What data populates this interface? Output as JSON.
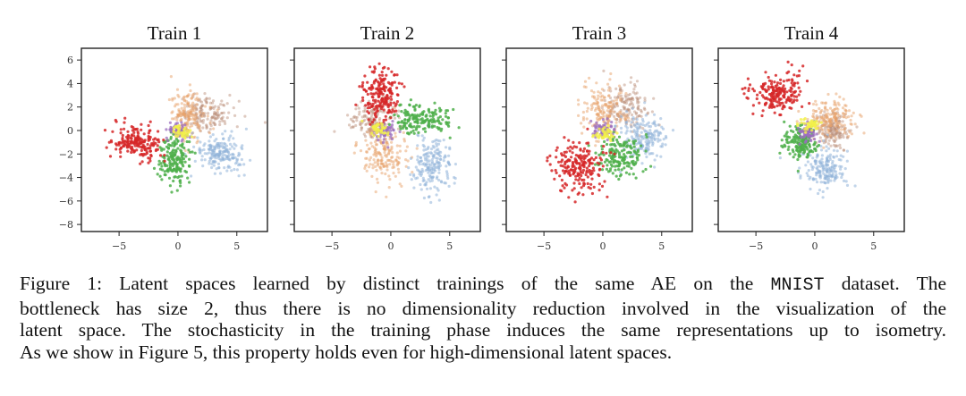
{
  "chart_data": {
    "type": "scatter",
    "x_ticks": [
      -5,
      0,
      5
    ],
    "y_ticks": [
      -8,
      -6,
      -4,
      -2,
      0,
      2,
      4,
      6
    ],
    "xlim": [
      -8.2,
      7.6
    ],
    "ylim": [
      -8.6,
      7.0
    ],
    "grid": false,
    "y_tick_labels_on": "first panel only",
    "colors": {
      "red": "#d62728",
      "green": "#4daf4a",
      "blue": "#8fb3d9",
      "orange": "#e8a26a",
      "brown": "#b98a74",
      "purple": "#9b6dbd",
      "yellow": "#f2f04a"
    },
    "panels": [
      {
        "title": "Train 1",
        "clusters": [
          {
            "color": "red",
            "center": [
              -3.5,
              -1.0
            ],
            "spread": [
              1.1,
              0.7
            ],
            "count": 190
          },
          {
            "color": "green",
            "center": [
              -0.3,
              -2.6
            ],
            "spread": [
              0.7,
              1.0
            ],
            "count": 170
          },
          {
            "color": "blue",
            "center": [
              3.5,
              -2.0
            ],
            "spread": [
              1.0,
              0.8
            ],
            "count": 190
          },
          {
            "color": "orange",
            "center": [
              0.8,
              1.2
            ],
            "spread": [
              0.7,
              1.1
            ],
            "count": 170
          },
          {
            "color": "brown",
            "center": [
              2.5,
              1.5
            ],
            "spread": [
              1.2,
              0.8
            ],
            "count": 150
          },
          {
            "color": "purple",
            "center": [
              0.0,
              0.0
            ],
            "spread": [
              0.5,
              0.4
            ],
            "count": 60
          },
          {
            "color": "yellow",
            "center": [
              0.4,
              -0.2
            ],
            "spread": [
              0.4,
              0.3
            ],
            "count": 40
          }
        ]
      },
      {
        "title": "Train 2",
        "clusters": [
          {
            "color": "red",
            "center": [
              -0.8,
              3.0
            ],
            "spread": [
              0.8,
              1.1
            ],
            "count": 200
          },
          {
            "color": "green",
            "center": [
              2.5,
              1.0
            ],
            "spread": [
              1.2,
              0.6
            ],
            "count": 170
          },
          {
            "color": "blue",
            "center": [
              3.5,
              -3.0
            ],
            "spread": [
              0.8,
              1.2
            ],
            "count": 190
          },
          {
            "color": "orange",
            "center": [
              -0.5,
              -2.0
            ],
            "spread": [
              1.0,
              1.3
            ],
            "count": 180
          },
          {
            "color": "brown",
            "center": [
              -1.5,
              0.8
            ],
            "spread": [
              1.0,
              0.8
            ],
            "count": 150
          },
          {
            "color": "purple",
            "center": [
              -0.5,
              -0.1
            ],
            "spread": [
              0.5,
              0.4
            ],
            "count": 60
          },
          {
            "color": "yellow",
            "center": [
              -1.0,
              0.2
            ],
            "spread": [
              0.4,
              0.3
            ],
            "count": 40
          }
        ]
      },
      {
        "title": "Train 3",
        "clusters": [
          {
            "color": "red",
            "center": [
              -2.0,
              -3.0
            ],
            "spread": [
              1.0,
              1.1
            ],
            "count": 200
          },
          {
            "color": "green",
            "center": [
              1.5,
              -2.3
            ],
            "spread": [
              1.0,
              0.8
            ],
            "count": 170
          },
          {
            "color": "blue",
            "center": [
              3.5,
              -0.5
            ],
            "spread": [
              1.0,
              1.0
            ],
            "count": 180
          },
          {
            "color": "orange",
            "center": [
              0.0,
              1.5
            ],
            "spread": [
              1.0,
              1.1
            ],
            "count": 170
          },
          {
            "color": "brown",
            "center": [
              2.0,
              2.2
            ],
            "spread": [
              1.0,
              1.0
            ],
            "count": 150
          },
          {
            "color": "purple",
            "center": [
              0.0,
              0.0
            ],
            "spread": [
              0.5,
              0.4
            ],
            "count": 60
          },
          {
            "color": "yellow",
            "center": [
              0.2,
              -0.3
            ],
            "spread": [
              0.4,
              0.3
            ],
            "count": 40
          }
        ]
      },
      {
        "title": "Train 4",
        "clusters": [
          {
            "color": "red",
            "center": [
              -3.2,
              3.2
            ],
            "spread": [
              1.1,
              0.8
            ],
            "count": 190
          },
          {
            "color": "green",
            "center": [
              -1.3,
              -1.0
            ],
            "spread": [
              0.7,
              0.7
            ],
            "count": 170
          },
          {
            "color": "blue",
            "center": [
              0.8,
              -3.3
            ],
            "spread": [
              0.9,
              0.9
            ],
            "count": 180
          },
          {
            "color": "orange",
            "center": [
              1.3,
              1.0
            ],
            "spread": [
              1.0,
              0.8
            ],
            "count": 170
          },
          {
            "color": "brown",
            "center": [
              1.5,
              0.0
            ],
            "spread": [
              0.8,
              0.7
            ],
            "count": 150
          },
          {
            "color": "purple",
            "center": [
              -0.6,
              -0.2
            ],
            "spread": [
              0.4,
              0.4
            ],
            "count": 60
          },
          {
            "color": "yellow",
            "center": [
              -0.3,
              0.5
            ],
            "spread": [
              0.4,
              0.3
            ],
            "count": 40
          }
        ]
      }
    ]
  },
  "caption": {
    "line1_a": "Figure 1: Latent spaces learned by distinct trainings of the same AE on the ",
    "line1_mono": "MNIST",
    "line1_b": " dataset. The",
    "line2": "bottleneck has size 2, thus there is no dimensionality reduction involved in the visualization of the",
    "line3": "latent space. The stochasticity in the training phase induces the same representations up to isometry.",
    "line4": "As we show in Figure 5, this property holds even for high-dimensional latent spaces."
  }
}
